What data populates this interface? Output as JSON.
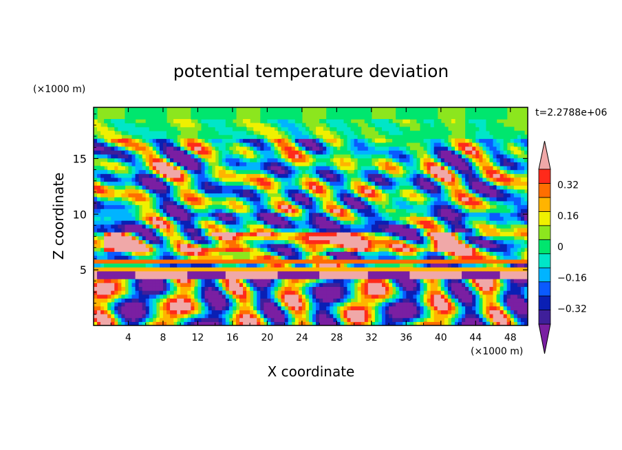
{
  "chart_data": {
    "type": "heatmap",
    "title": "potential temperature deviation",
    "xlabel": "X coordinate",
    "ylabel": "Z coordinate",
    "x_unit": "(×1000 m)",
    "y_unit": "(×1000 m)",
    "time_label": "t=2.2788e+06",
    "xlim": [
      0,
      50
    ],
    "ylim": [
      0,
      19.6
    ],
    "x_ticks": [
      4,
      8,
      12,
      16,
      20,
      24,
      28,
      32,
      36,
      40,
      44,
      48
    ],
    "y_ticks": [
      5,
      10,
      15
    ],
    "colorbar": {
      "levels": [
        -0.48,
        -0.4,
        -0.32,
        -0.24,
        -0.16,
        -0.08,
        0,
        0.08,
        0.16,
        0.24,
        0.32,
        0.4,
        0.48
      ],
      "tick_values": [
        0.32,
        0.16,
        0,
        -0.16,
        -0.32
      ],
      "tick_labels": [
        "0.32",
        "0.16",
        "0",
        "−0.16",
        "−0.32"
      ],
      "colors": [
        "#7a1fa2",
        "#3f1f9a",
        "#0a1fb4",
        "#0a5aff",
        "#00b4ff",
        "#00e6c8",
        "#00e66e",
        "#8ce61e",
        "#f0f000",
        "#ffb400",
        "#ff6e00",
        "#ff2a1a",
        "#f0a8a8"
      ]
    }
  }
}
